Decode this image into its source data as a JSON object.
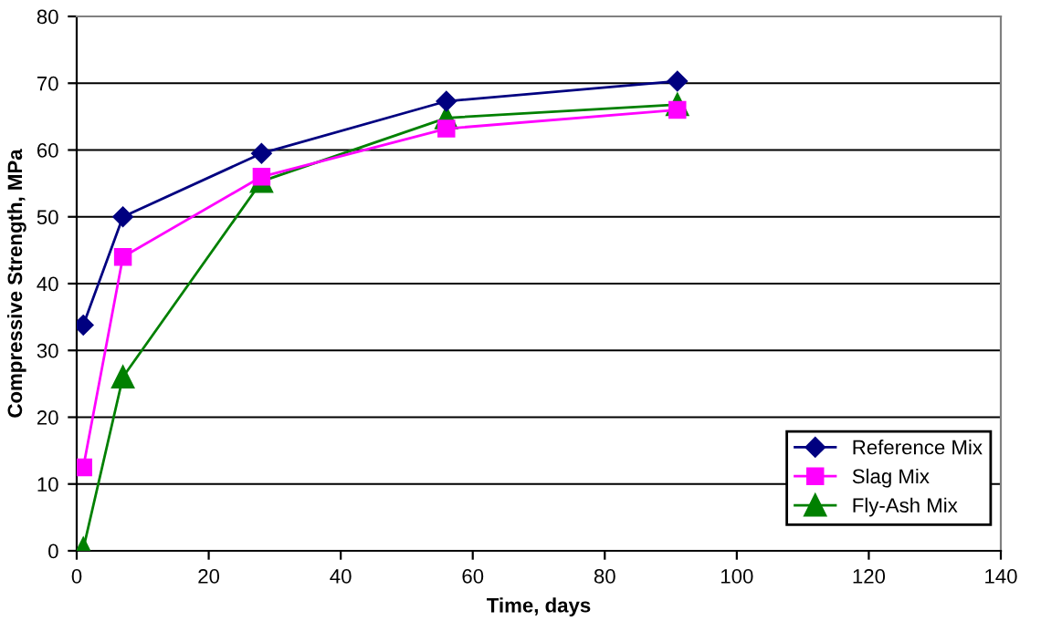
{
  "chart_data": {
    "type": "line",
    "xlabel": "Time, days",
    "ylabel": "Compressive Strength, MPa",
    "x": [
      1,
      7,
      28,
      56,
      91
    ],
    "series": [
      {
        "name": "Reference Mix",
        "color": "#000080",
        "marker": "diamond",
        "values": [
          33.8,
          50,
          59.5,
          67.3,
          70.3
        ]
      },
      {
        "name": "Slag Mix",
        "color": "#ff00ff",
        "marker": "square",
        "values": [
          12.5,
          44,
          56,
          63.2,
          66
        ]
      },
      {
        "name": "Fly-Ash Mix",
        "color": "#008000",
        "marker": "triangle",
        "values": [
          0.3,
          26,
          55.3,
          64.8,
          66.8
        ]
      }
    ],
    "xlim": [
      0,
      140
    ],
    "xticks": [
      0,
      20,
      40,
      60,
      80,
      100,
      120,
      140
    ],
    "ylim": [
      0,
      80
    ],
    "yticks": [
      0,
      10,
      20,
      30,
      40,
      50,
      60,
      70,
      80
    ],
    "grid": "y",
    "legend": "bottom right",
    "line_style": "solid"
  }
}
